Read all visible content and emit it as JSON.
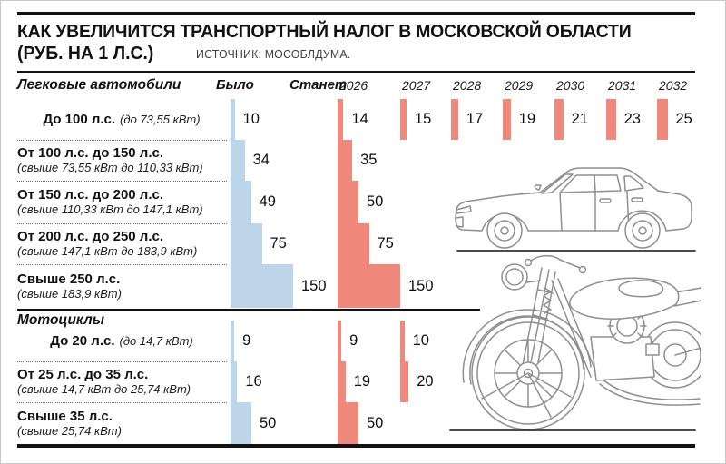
{
  "page": {
    "title_line1": "КАК УВЕЛИЧИТСЯ ТРАНСПОРТНЫЙ НАЛОГ В МОСКОВСКОЙ ОБЛАСТИ",
    "title_line2": "(РУБ. НА 1 Л.С.)",
    "source": "ИСТОЧНИК: МОСОБЛДУМА."
  },
  "columns": {
    "was": "Было",
    "becomes": "Станет",
    "years": [
      "2026",
      "2027",
      "2028",
      "2029",
      "2030",
      "2031",
      "2032"
    ]
  },
  "colors": {
    "was_bar": "#bdd5e8",
    "becomes_bar": "#f0897b"
  },
  "chart_data": {
    "type": "bar",
    "title": "Как увеличится транспортный налог в Московской области",
    "unit": "руб. на 1 л.с.",
    "legend": {
      "was": "Было",
      "becomes": "Станет"
    },
    "sections": [
      {
        "label": "Легковые автомобили",
        "rows": [
          {
            "label": "До 100 л.с.",
            "sublabel": "(до 73,55 кВт)",
            "layout": "inline",
            "was": 10,
            "becomes": [
              {
                "year": "2026",
                "value": 14
              },
              {
                "year": "2027",
                "value": 15
              },
              {
                "year": "2028",
                "value": 17
              },
              {
                "year": "2029",
                "value": 19
              },
              {
                "year": "2030",
                "value": 21
              },
              {
                "year": "2031",
                "value": 23
              },
              {
                "year": "2032",
                "value": 25
              }
            ]
          },
          {
            "label": "От 100 л.с. до 150 л.с.",
            "sublabel": "(свыше 73,55 кВт до 110,33 кВт)",
            "layout": "stacked",
            "was": 34,
            "becomes": [
              {
                "year": "2026",
                "value": 35
              }
            ]
          },
          {
            "label": "От 150 л.с. до 200 л.с.",
            "sublabel": "(свыше 110,33 кВт до 147,1 кВт)",
            "layout": "stacked",
            "was": 49,
            "becomes": [
              {
                "year": "2026",
                "value": 50
              }
            ]
          },
          {
            "label": "От 200 л.с. до 250 л.с.",
            "sublabel": "(свыше 147,1 кВт до 183,9 кВт)",
            "layout": "stacked",
            "was": 75,
            "becomes": [
              {
                "year": "2026",
                "value": 75
              }
            ]
          },
          {
            "label": "Свыше 250 л.с.",
            "sublabel": "(свыше 183,9 кВт)",
            "layout": "stacked",
            "was": 150,
            "becomes": [
              {
                "year": "2026",
                "value": 150
              }
            ]
          }
        ]
      },
      {
        "label": "Мотоциклы",
        "rows": [
          {
            "label": "До 20 л.с.",
            "sublabel": "(до 14,7 кВт)",
            "layout": "inline",
            "was": 9,
            "becomes": [
              {
                "year": "2026",
                "value": 9
              },
              {
                "year": "2027",
                "value": 10
              }
            ]
          },
          {
            "label": "От 25 л.с. до 35 л.с.",
            "sublabel": "(свыше 14,7 кВт до 25,74 кВт)",
            "layout": "stacked",
            "was": 16,
            "becomes": [
              {
                "year": "2026",
                "value": 19
              },
              {
                "year": "2027",
                "value": 20
              }
            ]
          },
          {
            "label": "Свыше 35 л.с.",
            "sublabel": "(свыше 25,74 кВт)",
            "layout": "stacked",
            "was": 50,
            "becomes": [
              {
                "year": "2026",
                "value": 50
              }
            ]
          }
        ]
      }
    ]
  }
}
